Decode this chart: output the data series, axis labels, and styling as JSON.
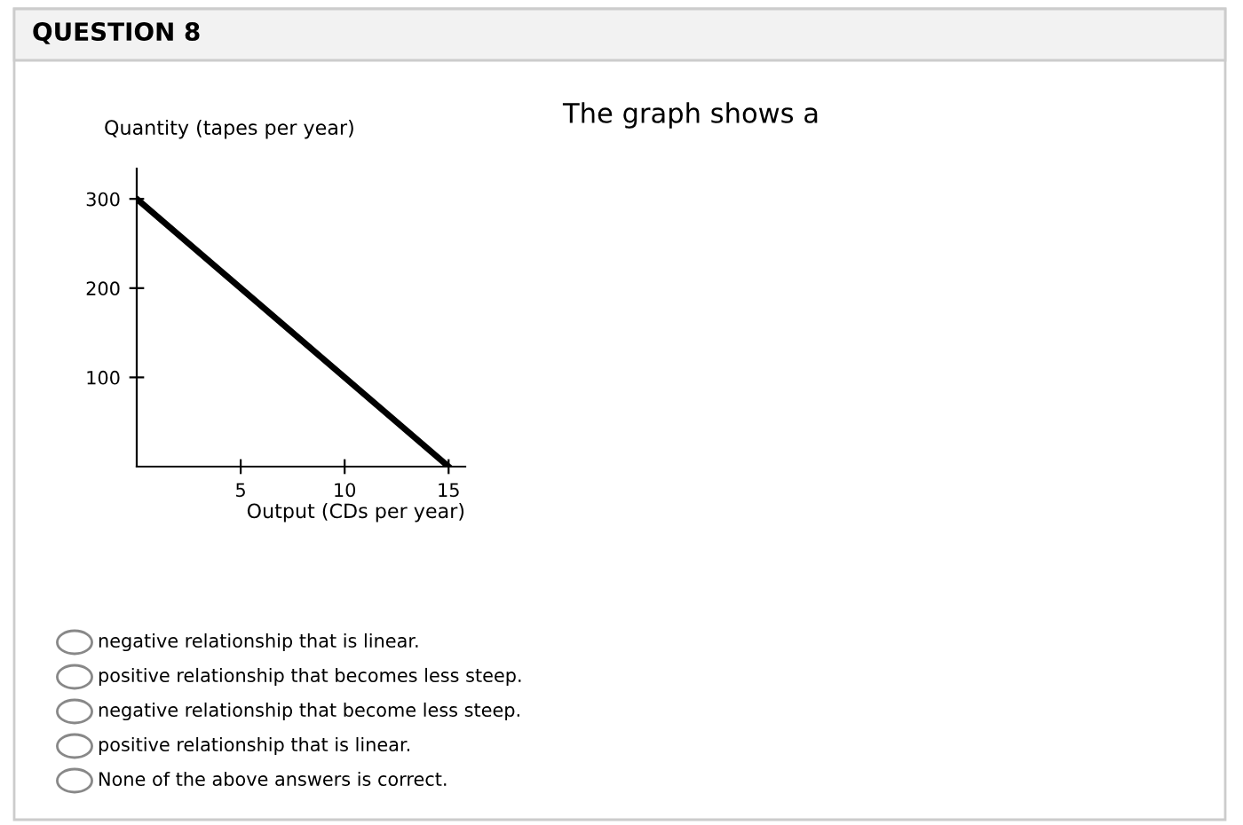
{
  "chart_data": {
    "type": "line",
    "title": "QUESTION 8",
    "xlabel": "Output (CDs per year)",
    "ylabel": "Quantity (tapes per year)",
    "x": [
      0,
      15
    ],
    "series": [
      {
        "color": "#000000",
        "values": [
          300,
          0
        ]
      }
    ],
    "xlim": [
      0,
      15.8
    ],
    "ylim": [
      0,
      334
    ],
    "xticks": [
      5,
      10,
      15
    ],
    "yticks": [
      100,
      200,
      300
    ],
    "grid": false,
    "legend": false,
    "marker": "none",
    "line_style": "solid",
    "annotations": [
      "The graph shows a",
      "negative relationship that is linear.",
      "positive relationship that becomes less steep.",
      "negative relationship that become less steep.",
      "positive relationship that is linear.",
      "None of the above answers is correct."
    ]
  }
}
